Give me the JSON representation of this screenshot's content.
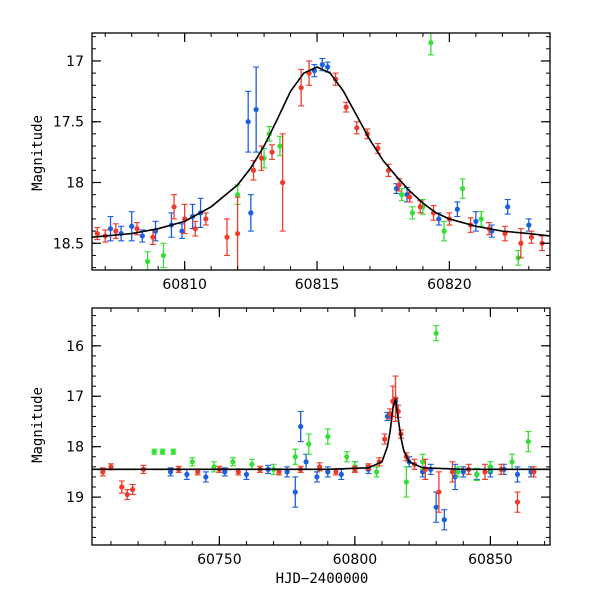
{
  "chart_data": [
    {
      "type": "scatter",
      "panel": "top",
      "title": "",
      "xlabel": "",
      "ylabel": "Magnitude",
      "xlim": [
        60806.5,
        60823.8
      ],
      "ylim": [
        18.72,
        16.77
      ],
      "y_inverted": true,
      "xticks": [
        60810,
        60815,
        60820
      ],
      "xtick_labels": [
        "60810",
        "60815",
        "60820"
      ],
      "yticks": [
        17,
        17.5,
        18,
        18.5
      ],
      "ytick_labels": [
        "17",
        "17.5",
        "18",
        "18.5"
      ],
      "grid": false,
      "legend": "none",
      "colors": {
        "blue": "#1a5fe0",
        "green": "#33e033",
        "red": "#f03a2a",
        "model": "#000000"
      },
      "model_curve": {
        "name": "",
        "x": [
          60806.5,
          60808,
          60809,
          60810,
          60811,
          60812,
          60812.5,
          60813,
          60813.5,
          60814,
          60814.5,
          60815,
          60815.5,
          60816,
          60816.5,
          60817,
          60817.5,
          60818,
          60818.5,
          60819,
          60819.5,
          60820,
          60821,
          60822,
          60823,
          60823.8
        ],
        "y": [
          18.45,
          18.42,
          18.38,
          18.32,
          18.2,
          18.02,
          17.88,
          17.7,
          17.48,
          17.25,
          17.1,
          17.05,
          17.1,
          17.25,
          17.45,
          17.65,
          17.82,
          17.95,
          18.07,
          18.17,
          18.25,
          18.3,
          18.36,
          18.4,
          18.42,
          18.44
        ]
      },
      "series": [
        {
          "name": "",
          "color": "blue",
          "x": [
            60807.2,
            60807.6,
            60808.0,
            60808.4,
            60808.9,
            60809.5,
            60809.9,
            60810.3,
            60810.6,
            60812.4,
            60812.5,
            60812.7,
            60814.9,
            60815.2,
            60815.4,
            60818.0,
            60818.4,
            60819.6,
            60820.3,
            60821.0,
            60821.6,
            60822.2,
            60823.0
          ],
          "y": [
            18.38,
            18.42,
            18.36,
            18.44,
            18.4,
            18.35,
            18.4,
            18.28,
            18.25,
            17.5,
            18.25,
            17.4,
            17.08,
            17.03,
            17.05,
            18.05,
            18.1,
            18.3,
            18.22,
            18.32,
            18.4,
            18.2,
            18.35
          ],
          "err": [
            0.1,
            0.06,
            0.12,
            0.05,
            0.08,
            0.1,
            0.06,
            0.1,
            0.12,
            0.25,
            0.15,
            0.35,
            0.05,
            0.05,
            0.04,
            0.04,
            0.06,
            0.05,
            0.06,
            0.08,
            0.05,
            0.06,
            0.05
          ]
        },
        {
          "name": "",
          "color": "green",
          "x": [
            60808.6,
            60809.2,
            60812.0,
            60813.0,
            60813.2,
            60813.6,
            60818.2,
            60818.6,
            60819.0,
            60819.3,
            60819.8,
            60820.5,
            60821.2,
            60822.6
          ],
          "y": [
            18.65,
            18.6,
            18.1,
            17.8,
            17.6,
            17.7,
            18.1,
            18.25,
            18.2,
            16.85,
            18.4,
            18.05,
            18.3,
            18.62
          ],
          "err": [
            0.08,
            0.1,
            0.08,
            0.08,
            0.06,
            0.08,
            0.05,
            0.05,
            0.06,
            0.1,
            0.08,
            0.08,
            0.06,
            0.06
          ]
        },
        {
          "name": "",
          "color": "red",
          "x": [
            60806.7,
            60807.0,
            60807.4,
            60808.2,
            60808.8,
            60809.6,
            60810.0,
            60810.4,
            60810.8,
            60811.6,
            60812.0,
            60812.6,
            60812.9,
            60813.3,
            60813.7,
            60814.4,
            60814.7,
            60815.7,
            60816.1,
            60816.5,
            60816.9,
            60817.3,
            60817.7,
            60818.1,
            60818.5,
            60818.9,
            60819.4,
            60820.0,
            60820.8,
            60821.5,
            60822.1,
            60822.7,
            60823.1,
            60823.5
          ],
          "y": [
            18.42,
            18.44,
            18.4,
            18.38,
            18.45,
            18.2,
            18.3,
            18.38,
            18.3,
            18.45,
            18.42,
            17.9,
            17.8,
            17.75,
            18.0,
            17.22,
            17.1,
            17.15,
            17.38,
            17.55,
            17.6,
            17.72,
            17.9,
            18.02,
            18.12,
            18.2,
            18.25,
            18.3,
            18.35,
            18.38,
            18.42,
            18.5,
            18.45,
            18.5
          ],
          "err": [
            0.05,
            0.05,
            0.06,
            0.05,
            0.06,
            0.1,
            0.12,
            0.06,
            0.05,
            0.15,
            0.3,
            0.08,
            0.1,
            0.06,
            0.4,
            0.15,
            0.1,
            0.05,
            0.04,
            0.05,
            0.04,
            0.04,
            0.05,
            0.05,
            0.04,
            0.05,
            0.06,
            0.05,
            0.06,
            0.05,
            0.06,
            0.12,
            0.05,
            0.06
          ]
        }
      ]
    },
    {
      "type": "scatter",
      "panel": "bottom",
      "title": "",
      "xlabel": "HJD−2400000",
      "ylabel": "Magnitude",
      "xlim": [
        60703,
        60872
      ],
      "ylim": [
        19.95,
        15.25
      ],
      "y_inverted": true,
      "xticks": [
        60750,
        60800,
        60850
      ],
      "xtick_labels": [
        "60750",
        "60800",
        "60850"
      ],
      "yticks": [
        16,
        17,
        18,
        19
      ],
      "ytick_labels": [
        "16",
        "17",
        "18",
        "19"
      ],
      "grid": false,
      "legend": "none",
      "model_curve": {
        "name": "",
        "x": [
          60703,
          60790,
          60805,
          60810,
          60812,
          60813,
          60814,
          60815,
          60816,
          60817,
          60818,
          60820,
          60825,
          60840,
          60872
        ],
        "y": [
          18.45,
          18.45,
          18.42,
          18.3,
          18.0,
          17.7,
          17.25,
          17.05,
          17.45,
          17.82,
          18.07,
          18.3,
          18.42,
          18.45,
          18.45
        ]
      },
      "series": [
        {
          "name": "",
          "color": "blue",
          "x": [
            60732,
            60738,
            60745,
            60752,
            60760,
            60768,
            60775,
            60778,
            60780,
            60782,
            60786,
            60790,
            60795,
            60800,
            60805,
            60812,
            60815,
            60820,
            60825,
            60828,
            60830,
            60833,
            60837,
            60840,
            60845,
            60850,
            60855,
            60860,
            60865
          ],
          "y": [
            18.5,
            18.55,
            18.6,
            18.5,
            18.55,
            18.45,
            18.5,
            18.9,
            17.6,
            18.3,
            18.6,
            18.5,
            18.55,
            18.4,
            18.45,
            17.4,
            17.1,
            18.3,
            18.5,
            18.45,
            19.2,
            19.45,
            18.6,
            18.5,
            18.55,
            18.5,
            18.45,
            18.55,
            18.5
          ],
          "err": [
            0.08,
            0.1,
            0.1,
            0.08,
            0.1,
            0.08,
            0.1,
            0.3,
            0.3,
            0.15,
            0.1,
            0.1,
            0.1,
            0.1,
            0.08,
            0.08,
            0.06,
            0.1,
            0.1,
            0.1,
            0.3,
            0.2,
            0.25,
            0.1,
            0.1,
            0.1,
            0.1,
            0.15,
            0.1
          ]
        },
        {
          "name": "",
          "color": "green",
          "x": [
            60726,
            60729,
            60733,
            60740,
            60748,
            60755,
            60762,
            60770,
            60778,
            60783,
            60790,
            60797,
            60800,
            60808,
            60819,
            60825,
            60830,
            60838,
            60845,
            60850,
            60858,
            60864
          ],
          "y": [
            18.1,
            18.1,
            18.1,
            18.3,
            18.4,
            18.3,
            18.35,
            18.45,
            18.2,
            17.95,
            17.8,
            18.2,
            18.4,
            18.5,
            18.7,
            18.3,
            15.75,
            18.5,
            18.55,
            18.4,
            18.3,
            17.9
          ],
          "err": [
            0.05,
            0.05,
            0.05,
            0.08,
            0.1,
            0.08,
            0.1,
            0.1,
            0.15,
            0.2,
            0.15,
            0.1,
            0.1,
            0.1,
            0.3,
            0.15,
            0.15,
            0.1,
            0.12,
            0.1,
            0.15,
            0.2
          ]
        },
        {
          "name": "",
          "color": "red",
          "x": [
            60707,
            60710,
            60714,
            60716,
            60718,
            60722,
            60735,
            60742,
            60750,
            60757,
            60765,
            60772,
            60780,
            60787,
            60793,
            60800,
            60805,
            60809,
            60811,
            60813,
            60814,
            60815,
            60816,
            60817,
            60819,
            60822,
            60826,
            60831,
            60836,
            60842,
            60848,
            60854,
            60860,
            60866
          ],
          "y": [
            18.5,
            18.4,
            18.8,
            18.95,
            18.85,
            18.45,
            18.45,
            18.5,
            18.45,
            18.5,
            18.45,
            18.5,
            18.45,
            18.4,
            18.5,
            18.45,
            18.4,
            18.3,
            17.85,
            17.35,
            17.1,
            17.05,
            17.3,
            17.75,
            18.2,
            18.35,
            18.45,
            18.9,
            18.5,
            18.45,
            18.5,
            18.45,
            19.1,
            18.5
          ],
          "err": [
            0.08,
            0.06,
            0.12,
            0.1,
            0.1,
            0.08,
            0.06,
            0.06,
            0.06,
            0.06,
            0.06,
            0.06,
            0.06,
            0.08,
            0.06,
            0.06,
            0.06,
            0.08,
            0.1,
            0.1,
            0.3,
            0.45,
            0.12,
            0.08,
            0.08,
            0.1,
            0.2,
            0.4,
            0.2,
            0.1,
            0.15,
            0.1,
            0.2,
            0.1
          ]
        }
      ]
    }
  ]
}
